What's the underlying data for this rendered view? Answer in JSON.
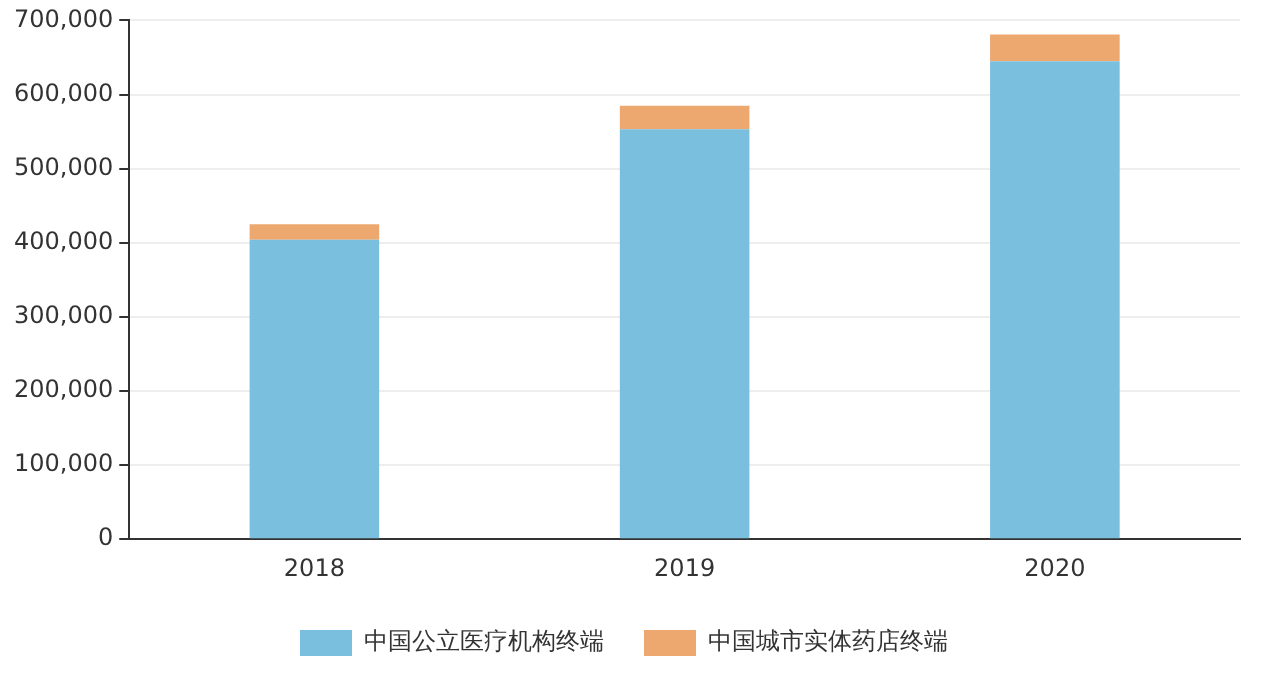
{
  "chart_data": {
    "type": "bar",
    "stacked": true,
    "categories": [
      "2018",
      "2019",
      "2020"
    ],
    "series": [
      {
        "name": "中国公立医疗机构终端",
        "color": "#7bbfde",
        "values": [
          404000,
          553000,
          645000
        ]
      },
      {
        "name": "中国城市实体药店终端",
        "color": "#eda870",
        "values": [
          21000,
          32000,
          36000
        ]
      }
    ],
    "ylim": [
      0,
      700000
    ],
    "yticks": [
      0,
      {
        "value": 100000,
        "label": "100,000"
      },
      {
        "value": 200000,
        "label": "200,000"
      },
      {
        "value": 300000,
        "label": "300,000"
      },
      {
        "value": 400000,
        "label": "400,000"
      },
      {
        "value": 500000,
        "label": "500,000"
      },
      {
        "value": 600000,
        "label": "600,000"
      },
      {
        "value": 700000,
        "label": "700,000"
      }
    ],
    "grid": "y",
    "legend": "bottom"
  }
}
